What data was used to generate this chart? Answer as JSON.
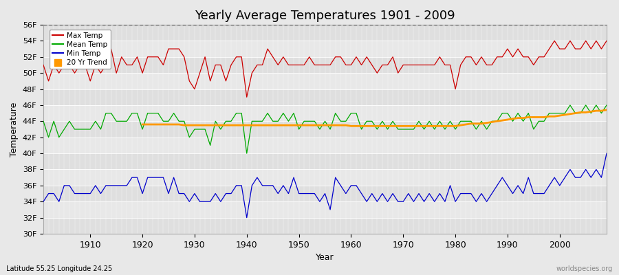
{
  "title": "Yearly Average Temperatures 1901 - 2009",
  "xlabel": "Year",
  "ylabel": "Temperature",
  "subtitle_lat": "Latitude 55.25 Longitude 24.25",
  "watermark": "worldspecies.org",
  "years": [
    1901,
    1902,
    1903,
    1904,
    1905,
    1906,
    1907,
    1908,
    1909,
    1910,
    1911,
    1912,
    1913,
    1914,
    1915,
    1916,
    1917,
    1918,
    1919,
    1920,
    1921,
    1922,
    1923,
    1924,
    1925,
    1926,
    1927,
    1928,
    1929,
    1930,
    1931,
    1932,
    1933,
    1934,
    1935,
    1936,
    1937,
    1938,
    1939,
    1940,
    1941,
    1942,
    1943,
    1944,
    1945,
    1946,
    1947,
    1948,
    1949,
    1950,
    1951,
    1952,
    1953,
    1954,
    1955,
    1956,
    1957,
    1958,
    1959,
    1960,
    1961,
    1962,
    1963,
    1964,
    1965,
    1966,
    1967,
    1968,
    1969,
    1970,
    1971,
    1972,
    1973,
    1974,
    1975,
    1976,
    1977,
    1978,
    1979,
    1980,
    1981,
    1982,
    1983,
    1984,
    1985,
    1986,
    1987,
    1988,
    1989,
    1990,
    1991,
    1992,
    1993,
    1994,
    1995,
    1996,
    1997,
    1998,
    1999,
    2000,
    2001,
    2002,
    2003,
    2004,
    2005,
    2006,
    2007,
    2008,
    2009
  ],
  "max_temp": [
    51,
    49,
    51,
    50,
    51,
    51,
    50,
    51,
    51,
    49,
    51,
    50,
    51,
    53,
    50,
    52,
    51,
    51,
    52,
    50,
    52,
    52,
    52,
    51,
    53,
    53,
    53,
    52,
    49,
    48,
    50,
    52,
    49,
    51,
    51,
    49,
    51,
    52,
    52,
    47,
    50,
    51,
    51,
    53,
    52,
    51,
    52,
    51,
    51,
    51,
    51,
    52,
    51,
    51,
    51,
    51,
    52,
    52,
    51,
    51,
    52,
    51,
    52,
    51,
    50,
    51,
    51,
    52,
    50,
    51,
    51,
    51,
    51,
    51,
    51,
    51,
    52,
    51,
    51,
    48,
    51,
    52,
    52,
    51,
    52,
    51,
    51,
    52,
    52,
    53,
    52,
    53,
    52,
    52,
    51,
    52,
    52,
    53,
    54,
    53,
    53,
    54,
    53,
    53,
    54,
    53,
    54,
    53,
    54
  ],
  "mean_temp": [
    44,
    42,
    44,
    42,
    43,
    44,
    43,
    43,
    43,
    43,
    44,
    43,
    45,
    45,
    44,
    44,
    44,
    45,
    45,
    43,
    45,
    45,
    45,
    44,
    44,
    45,
    44,
    44,
    42,
    43,
    43,
    43,
    41,
    44,
    43,
    44,
    44,
    45,
    45,
    40,
    44,
    44,
    44,
    45,
    44,
    44,
    45,
    44,
    45,
    43,
    44,
    44,
    44,
    43,
    44,
    43,
    45,
    44,
    44,
    45,
    45,
    43,
    44,
    44,
    43,
    44,
    43,
    44,
    43,
    43,
    43,
    43,
    44,
    43,
    44,
    43,
    44,
    43,
    44,
    43,
    44,
    44,
    44,
    43,
    44,
    43,
    44,
    44,
    45,
    45,
    44,
    45,
    44,
    45,
    43,
    44,
    44,
    45,
    45,
    45,
    45,
    46,
    45,
    45,
    46,
    45,
    46,
    45,
    46
  ],
  "min_temp": [
    34,
    35,
    35,
    34,
    36,
    36,
    35,
    35,
    35,
    35,
    36,
    35,
    36,
    36,
    36,
    36,
    36,
    37,
    37,
    35,
    37,
    37,
    37,
    37,
    35,
    37,
    35,
    35,
    34,
    35,
    34,
    34,
    34,
    35,
    34,
    35,
    35,
    36,
    36,
    32,
    36,
    37,
    36,
    36,
    36,
    35,
    36,
    35,
    37,
    35,
    35,
    35,
    35,
    34,
    35,
    33,
    37,
    36,
    35,
    36,
    36,
    35,
    34,
    35,
    34,
    35,
    34,
    35,
    34,
    34,
    35,
    34,
    35,
    34,
    35,
    34,
    35,
    34,
    36,
    34,
    35,
    35,
    35,
    34,
    35,
    34,
    35,
    36,
    37,
    36,
    35,
    36,
    35,
    37,
    35,
    35,
    35,
    36,
    37,
    36,
    37,
    38,
    37,
    37,
    38,
    37,
    38,
    37,
    40
  ],
  "trend_years": [
    1920,
    1921,
    1922,
    1923,
    1924,
    1925,
    1926,
    1927,
    1928,
    1929,
    1930,
    1931,
    1932,
    1933,
    1934,
    1935,
    1936,
    1937,
    1938,
    1939,
    1940,
    1941,
    1942,
    1943,
    1944,
    1945,
    1946,
    1947,
    1948,
    1949,
    1950,
    1951,
    1952,
    1953,
    1954,
    1955,
    1956,
    1957,
    1958,
    1959,
    1960,
    1961,
    1962,
    1963,
    1964,
    1965,
    1966,
    1967,
    1968,
    1969,
    1970,
    1971,
    1972,
    1973,
    1974,
    1975,
    1976,
    1977,
    1978,
    1979,
    1980,
    1981,
    1982,
    1983,
    1984,
    1985,
    1986,
    1987,
    1988,
    1989,
    1990,
    1991,
    1992,
    1993,
    1994,
    1995,
    1996,
    1997,
    1998,
    1999,
    2000,
    2001,
    2002,
    2003,
    2004,
    2005,
    2006,
    2007,
    2008,
    2009
  ],
  "trend_temp": [
    43.6,
    43.6,
    43.6,
    43.6,
    43.6,
    43.6,
    43.6,
    43.6,
    43.5,
    43.5,
    43.5,
    43.5,
    43.5,
    43.5,
    43.5,
    43.5,
    43.5,
    43.5,
    43.5,
    43.5,
    43.5,
    43.5,
    43.5,
    43.5,
    43.5,
    43.5,
    43.5,
    43.5,
    43.5,
    43.5,
    43.5,
    43.5,
    43.5,
    43.5,
    43.5,
    43.5,
    43.5,
    43.5,
    43.5,
    43.5,
    43.4,
    43.4,
    43.4,
    43.4,
    43.4,
    43.4,
    43.4,
    43.4,
    43.4,
    43.4,
    43.4,
    43.4,
    43.4,
    43.4,
    43.4,
    43.4,
    43.4,
    43.4,
    43.4,
    43.4,
    43.4,
    43.5,
    43.6,
    43.7,
    43.7,
    43.7,
    43.8,
    43.9,
    44.0,
    44.1,
    44.2,
    44.3,
    44.4,
    44.4,
    44.5,
    44.5,
    44.5,
    44.5,
    44.6,
    44.6,
    44.7,
    44.8,
    44.9,
    45.0,
    45.1,
    45.1,
    45.2,
    45.3,
    45.3,
    45.4
  ],
  "max_color": "#cc0000",
  "mean_color": "#00aa00",
  "min_color": "#0000cc",
  "trend_color": "#ff9900",
  "bg_color": "#e8e8e8",
  "grid_color": "#ffffff",
  "ylim": [
    30,
    56
  ],
  "yticks": [
    30,
    32,
    34,
    36,
    38,
    40,
    42,
    44,
    46,
    48,
    50,
    52,
    54,
    56
  ],
  "ytick_labels": [
    "30F",
    "32F",
    "34F",
    "36F",
    "38F",
    "40F",
    "42F",
    "44F",
    "46F",
    "48F",
    "50F",
    "52F",
    "54F",
    "56F"
  ],
  "xticks": [
    1910,
    1920,
    1930,
    1940,
    1950,
    1960,
    1970,
    1980,
    1990,
    2000
  ]
}
